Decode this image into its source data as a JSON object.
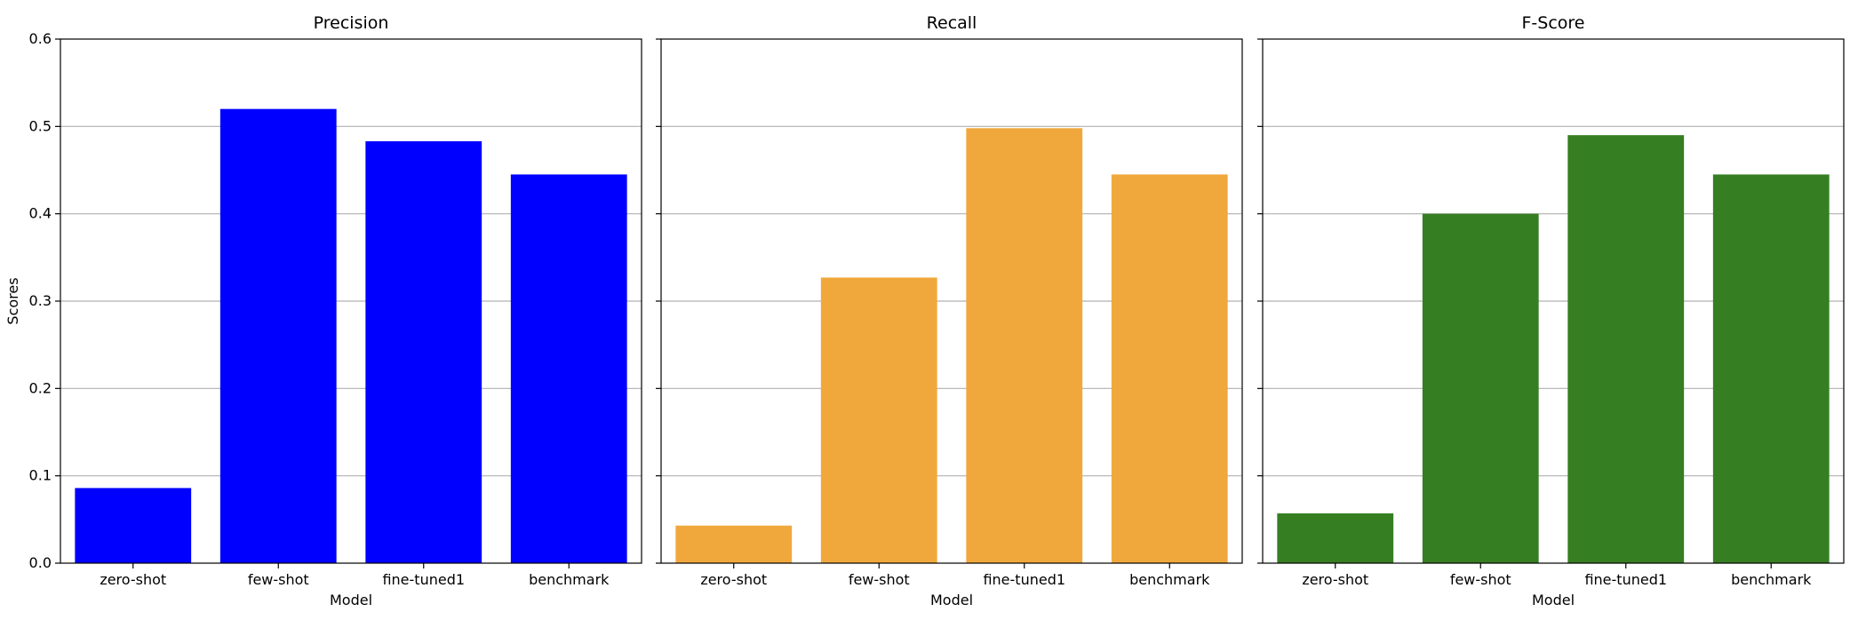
{
  "chart_data": [
    {
      "type": "bar",
      "title": "Precision",
      "xlabel": "Model",
      "ylabel": "Scores",
      "categories": [
        "zero-shot",
        "few-shot",
        "fine-tuned1",
        "benchmark"
      ],
      "values": [
        0.086,
        0.52,
        0.483,
        0.445
      ],
      "ylim": [
        0,
        0.6
      ],
      "yticks": [
        "0.0",
        "0.1",
        "0.2",
        "0.3",
        "0.4",
        "0.5",
        "0.6"
      ],
      "color": "#0000ff",
      "grid": "y"
    },
    {
      "type": "bar",
      "title": "Recall",
      "xlabel": "Model",
      "ylabel": "",
      "categories": [
        "zero-shot",
        "few-shot",
        "fine-tuned1",
        "benchmark"
      ],
      "values": [
        0.043,
        0.327,
        0.498,
        0.445
      ],
      "ylim": [
        0,
        0.6
      ],
      "yticks": [],
      "color": "#f0a83c",
      "grid": "y"
    },
    {
      "type": "bar",
      "title": "F-Score",
      "xlabel": "Model",
      "ylabel": "",
      "categories": [
        "zero-shot",
        "few-shot",
        "fine-tuned1",
        "benchmark"
      ],
      "values": [
        0.057,
        0.4,
        0.49,
        0.445
      ],
      "ylim": [
        0,
        0.6
      ],
      "yticks": [],
      "color": "#367e22",
      "grid": "y"
    }
  ]
}
